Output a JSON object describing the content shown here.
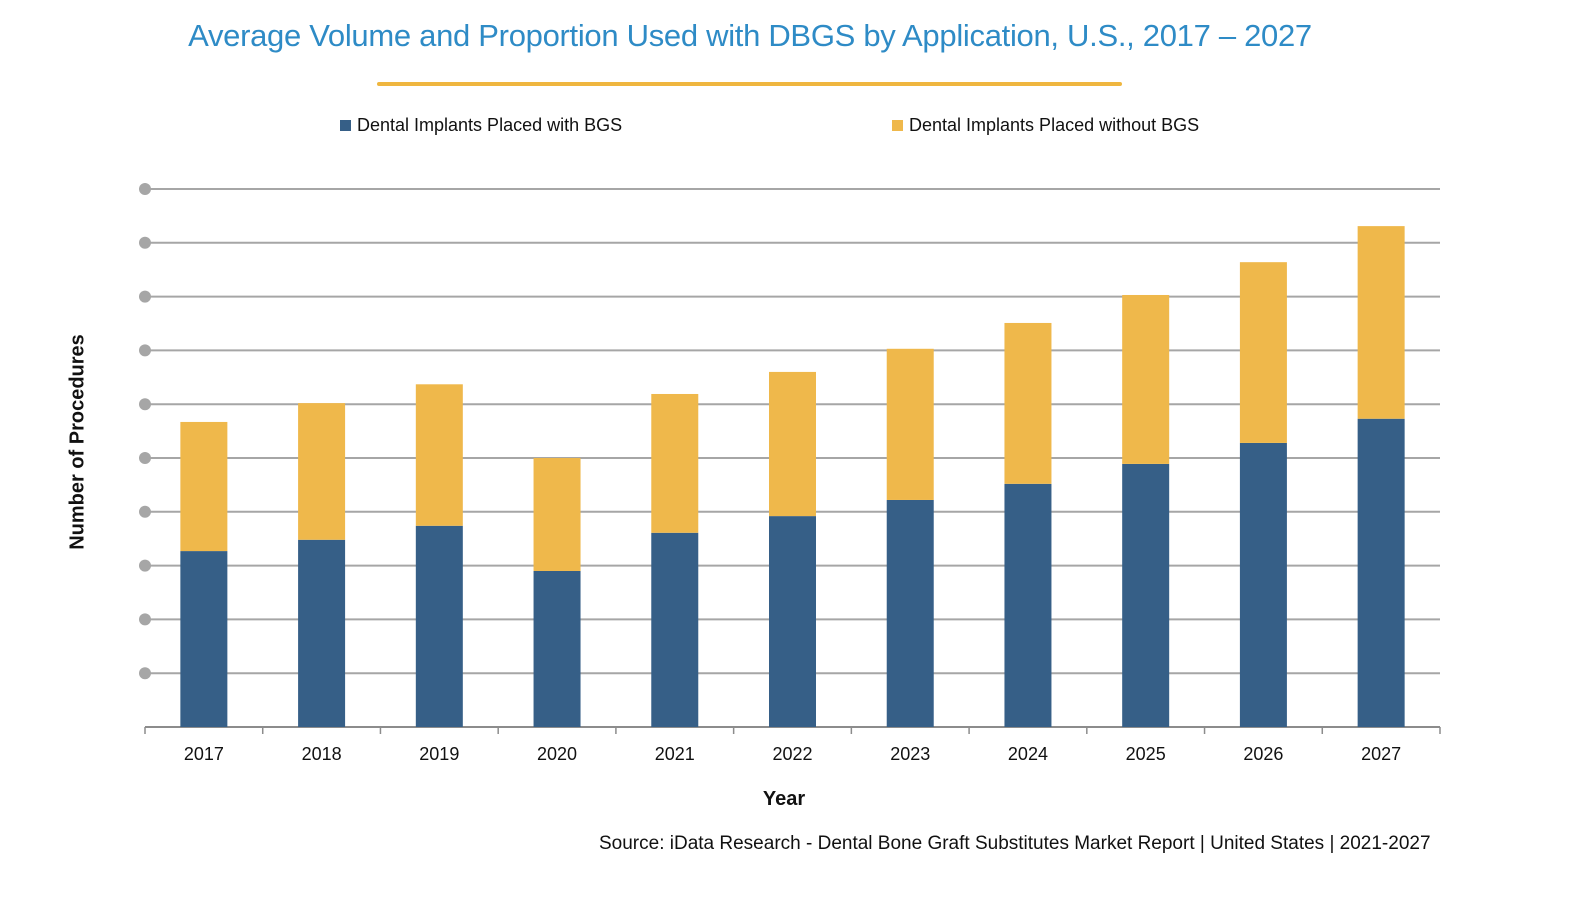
{
  "chart_data": {
    "type": "bar",
    "stacked": true,
    "title": "Average Volume and Proportion Used with DBGS by Application, U.S., 2017 – 2027",
    "xlabel": "Year",
    "ylabel": "Number of Procedures",
    "y_tick_labels_shown": false,
    "y_units_note": "Relative units (one unit = one gridline interval); no numeric y-axis labels shown",
    "ylim": [
      0,
      10
    ],
    "gridlines": true,
    "legend_position": "top",
    "categories": [
      "2017",
      "2018",
      "2019",
      "2020",
      "2021",
      "2022",
      "2023",
      "2024",
      "2025",
      "2026",
      "2027"
    ],
    "series": [
      {
        "name": "Dental Implants Placed with BGS",
        "color": "#365f87",
        "values": [
          3.27,
          3.48,
          3.74,
          2.9,
          3.61,
          3.92,
          4.22,
          4.52,
          4.89,
          5.28,
          5.73
        ]
      },
      {
        "name": "Dental Implants Placed without BGS",
        "color": "#efb84b",
        "values": [
          2.4,
          2.54,
          2.63,
          2.1,
          2.58,
          2.68,
          2.81,
          2.99,
          3.14,
          3.36,
          3.58
        ]
      }
    ]
  },
  "source": "Source: iData Research - Dental Bone Graft Substitutes Market Report | United States | 2021-2027",
  "colors": {
    "title": "#2e8bc6",
    "title_rule": "#efb63f",
    "gridline": "#a6a6a6",
    "grid_dot": "#a6a6a6"
  }
}
